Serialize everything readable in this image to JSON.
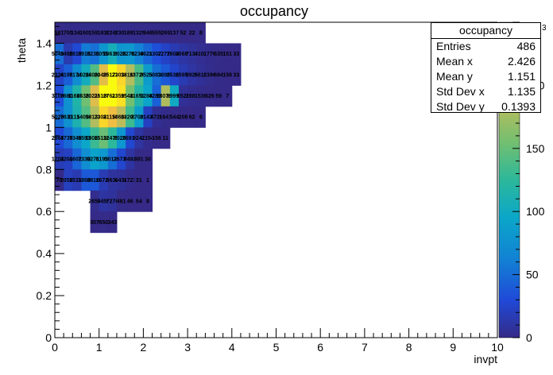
{
  "chart_data": {
    "type": "heatmap",
    "title": "occupancy",
    "xlabel": "invpt",
    "ylabel": "theta",
    "xlim": [
      0,
      10
    ],
    "ylim": [
      0,
      1.5
    ],
    "x_bin_width": 0.2,
    "y_bin_width": 0.1,
    "x_ticks": [
      0,
      1,
      2,
      3,
      4,
      5,
      6,
      7,
      8,
      9,
      10
    ],
    "y_ticks": [
      "0",
      "0.2",
      "0.4",
      "0.6",
      "0.8",
      "1",
      "1.2",
      "1.4"
    ],
    "colorbar": {
      "min": 0,
      "max": 250,
      "ticks": [
        0,
        50,
        100,
        150,
        200
      ],
      "exponent_label": "3"
    },
    "cells": [
      {
        "row": 1.4,
        "x0": 0,
        "values": [
          "581",
          "700",
          "1342",
          "1602",
          "1591",
          "1939",
          "2249",
          "2307",
          "1897",
          "1329",
          "946",
          "555",
          "269",
          "137",
          "52",
          "22",
          "8"
        ]
      },
      {
        "row": 1.3,
        "x0": 0,
        "values": [
          "50499",
          "14954",
          "28185",
          "59185",
          "52318",
          "80557",
          "106180",
          "80288",
          "82787",
          "62383",
          "46218",
          "33076",
          "22779",
          "16044",
          "10684",
          "7131",
          "4102",
          "1770",
          "635",
          "151",
          "33"
        ]
      },
      {
        "row": 1.2,
        "x0": 0,
        "values": [
          "23369",
          "41964",
          "71741",
          "102884",
          "140920",
          "204955",
          "251725",
          "230348",
          "181653",
          "137266",
          "85255",
          "50839",
          "38959",
          "25362",
          "15952",
          "9928",
          "5618",
          "2396",
          "694",
          "158",
          "33"
        ]
      },
      {
        "row": 1.1,
        "x0": 0,
        "values": [
          "31005",
          "76602",
          "116045",
          "153812",
          "202183",
          "251083",
          "276132",
          "235915",
          "154821",
          "116516",
          "92883",
          "42891",
          "180799",
          "99999",
          "5528",
          "2881",
          "1530",
          "626",
          "59",
          "7"
        ]
      },
      {
        "row": 1.0,
        "x0": 0,
        "values": [
          "50206",
          "76318",
          "111541",
          "140948",
          "181327",
          "230419",
          "211565",
          "186048",
          "132016",
          "87002",
          "21431",
          "4729",
          "1641",
          "544",
          "208",
          "62",
          "6"
        ]
      },
      {
        "row": 0.9,
        "x0": 0,
        "values": [
          "28655",
          "47390",
          "73463",
          "95933",
          "130875",
          "151381",
          "124750",
          "80257",
          "26917",
          "9247",
          "2154",
          "156",
          "11"
        ]
      },
      {
        "row": 0.8,
        "x0": 0,
        "values": [
          "17049",
          "22019",
          "46028",
          "73309",
          "92712",
          "81935",
          "50120",
          "26729",
          "9492",
          "881",
          "30"
        ]
      },
      {
        "row": 0.7,
        "x0": 0,
        "values": [
          "70",
          "20551",
          "15317",
          "38609",
          "38107",
          "16720",
          "8632",
          "6430",
          "1723",
          "31",
          "1"
        ]
      },
      {
        "row": 0.6,
        "x0": 0.8,
        "values": [
          "2657",
          "9455",
          "7279",
          "481",
          "46",
          "54",
          "8"
        ]
      },
      {
        "row": 0.5,
        "x0": 0.8,
        "values": [
          "307",
          "650",
          "343"
        ]
      }
    ]
  },
  "stats": {
    "title": "occupancy",
    "rows": [
      {
        "label": "Entries",
        "value": "486"
      },
      {
        "label": "Mean x",
        "value": "2.426"
      },
      {
        "label": "Mean y",
        "value": "1.151"
      },
      {
        "label": "Std Dev x",
        "value": "1.135"
      },
      {
        "label": "Std Dev y",
        "value": "0.1393"
      }
    ]
  }
}
